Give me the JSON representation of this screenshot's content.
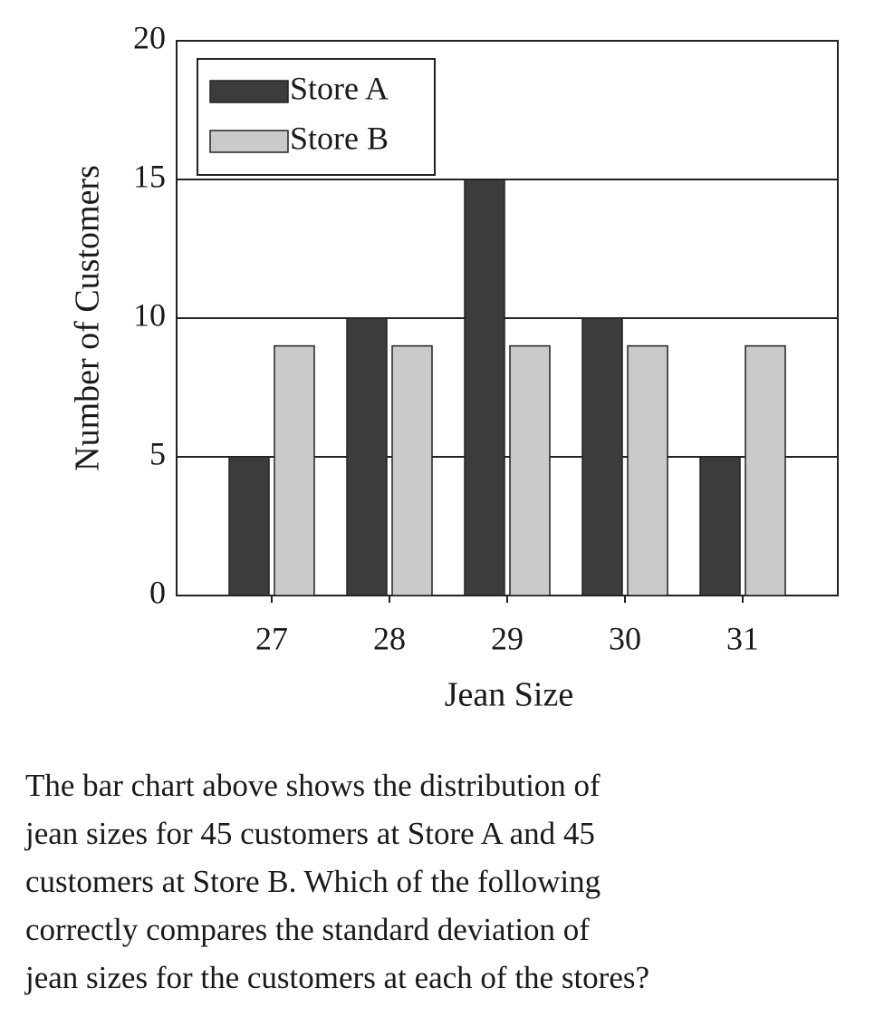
{
  "chart_data": {
    "type": "bar",
    "x_label": "Jean Size",
    "y_label": "Number of Customers",
    "categories": [
      "27",
      "28",
      "29",
      "30",
      "31"
    ],
    "series": [
      {
        "name": "Store A",
        "color": "#3c3c3c",
        "values": [
          5,
          10,
          15,
          10,
          5
        ]
      },
      {
        "name": "Store B",
        "color": "#cacaca",
        "values": [
          9,
          9,
          9,
          9,
          9
        ]
      }
    ],
    "ylim": [
      0,
      20
    ],
    "yticks": [
      0,
      5,
      10,
      15,
      20
    ],
    "grid": true,
    "legend": "top-left"
  },
  "question": {
    "lines": [
      "The bar chart above shows the distribution of",
      "jean sizes for 45 customers at Store A and 45",
      "customers at Store B. Which of the following",
      "correctly compares the standard deviation of",
      "jean sizes for the customers at each of the stores?"
    ]
  }
}
